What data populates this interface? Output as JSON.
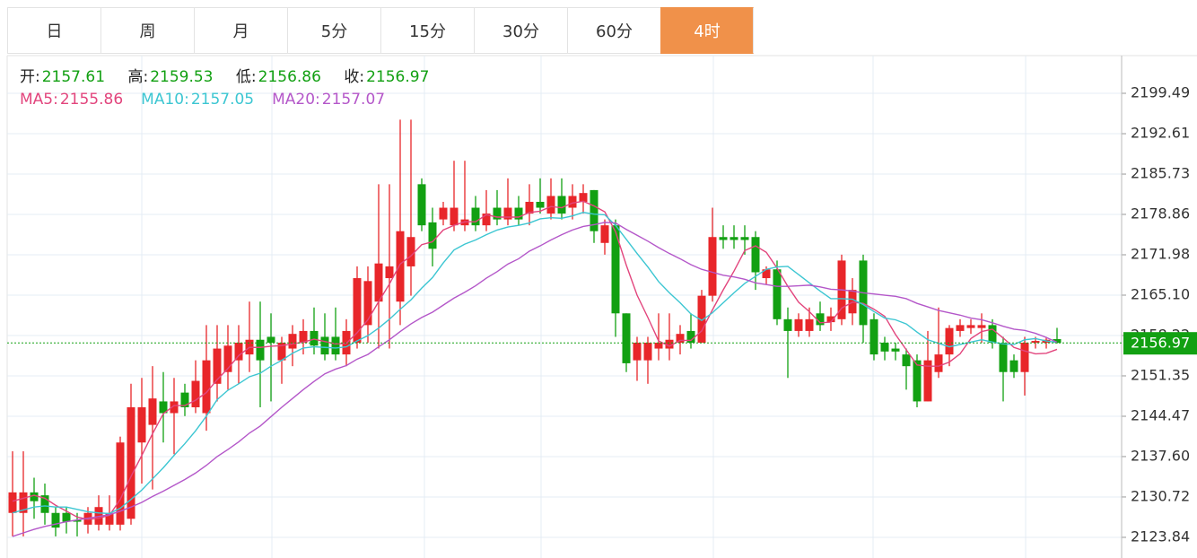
{
  "tabs": [
    "日",
    "周",
    "月",
    "5分",
    "15分",
    "30分",
    "60分",
    "4时"
  ],
  "active_tab": 7,
  "chart_data": {
    "type": "candlestick",
    "open_label": "开:",
    "high_label": "高:",
    "low_label": "低:",
    "close_label": "收:",
    "up_color": "#e8262a",
    "down_color": "#12a012",
    "ylim": [
      2120.32,
      2205.91
    ],
    "yticks": [
      2123.84,
      2130.72,
      {
        "value": 2137.6,
        "label": "2137.60"
      },
      2144.47,
      2151.35,
      2158.22,
      {
        "value": 2165.1,
        "label": "2165.10"
      },
      2171.98,
      2178.86,
      2185.73,
      2192.61,
      2199.49
    ],
    "grid": true,
    "open": [
      2128,
      2128,
      2131.5,
      2131,
      2128,
      2128,
      2126.8,
      2126,
      2126,
      2126,
      2126,
      2127,
      2140,
      2143,
      2147,
      2145,
      2148.5,
      2146,
      2145,
      2150,
      2152,
      2154,
      2155,
      2157.5,
      2158,
      2154,
      2156,
      2157,
      2159,
      2158,
      2158,
      2155,
      2157,
      2160,
      2164,
      2168,
      2164,
      2170,
      2184,
      2177.5,
      2178,
      2177,
      2177,
      2180,
      2177,
      2180,
      2178,
      2180,
      2179,
      2181,
      2179,
      2182,
      2180,
      2181,
      2183,
      2174,
      2177,
      2162,
      2154,
      2154,
      2156,
      2156,
      2157,
      2159,
      2157,
      2165,
      2175,
      2175,
      2175,
      2175,
      2168,
      2169.5,
      2161,
      2159,
      2159,
      2162,
      2160.5,
      2161,
      2162,
      2171,
      2161,
      2157,
      2156,
      2155,
      2154,
      2147,
      2152,
      2155,
      2159,
      2159.5,
      2159.5,
      2160,
      2157,
      2154,
      2152,
      2157,
      2157,
      2157.61
    ],
    "high": [
      2138.5,
      2138.5,
      2134,
      2133,
      2129,
      2129,
      2128,
      2129,
      2131,
      2131,
      2141,
      2150,
      2151,
      2153,
      2152,
      2151,
      2150,
      2154,
      2160,
      2160,
      2160,
      2160,
      2164,
      2164,
      2162,
      2158,
      2160,
      2161,
      2163,
      2162,
      2163,
      2161,
      2170,
      2170,
      2184,
      2184,
      2195,
      2195,
      2185,
      2180,
      2181,
      2188,
      2188,
      2182,
      2183,
      2183,
      2185,
      2182,
      2184,
      2185,
      2185,
      2185,
      2184,
      2184,
      2183,
      2178,
      2178,
      2162,
      2158,
      2158,
      2162,
      2162,
      2160,
      2162,
      2166,
      2180,
      2177,
      2177,
      2177,
      2176,
      2170,
      2171,
      2163,
      2162,
      2163,
      2164,
      2163,
      2172,
      2168,
      2172,
      2162,
      2158,
      2157,
      2156,
      2155,
      2159,
      2163,
      2160,
      2161,
      2161,
      2162,
      2161,
      2158,
      2155,
      2158,
      2158,
      2158,
      2159.53
    ],
    "low": [
      2124,
      2124,
      2127,
      2126,
      2124,
      2124.5,
      2124,
      2124.5,
      2125,
      2125,
      2125,
      2126,
      2133,
      2132,
      2140,
      2138,
      2144.5,
      2145,
      2142,
      2147,
      2149,
      2150,
      2152,
      2146,
      2147,
      2150,
      2153,
      2155,
      2155,
      2154,
      2154,
      2153,
      2156,
      2157,
      2156,
      2156,
      2160,
      2165,
      2176,
      2170,
      2177,
      2176,
      2176,
      2176,
      2176,
      2177,
      2177,
      2177,
      2177,
      2179,
      2178,
      2178,
      2178,
      2179,
      2174,
      2172,
      2158,
      2152,
      2150.5,
      2150,
      2154,
      2154,
      2155,
      2156,
      2157,
      2164,
      2173,
      2173,
      2172,
      2166,
      2167,
      2160,
      2151,
      2158,
      2158,
      2159,
      2159,
      2160,
      2160,
      2157,
      2154,
      2154,
      2154,
      2149,
      2146,
      2147,
      2151,
      2153,
      2158,
      2158.5,
      2157,
      2156,
      2147,
      2151,
      2148,
      2156,
      2156,
      2156.86
    ],
    "close": [
      2131.5,
      2131.5,
      2130,
      2128,
      2125.5,
      2126.5,
      2126.5,
      2128,
      2129,
      2128,
      2140,
      2146,
      2146,
      2147.5,
      2145,
      2147,
      2146,
      2150.5,
      2154,
      2156,
      2156.5,
      2157,
      2157.5,
      2154,
      2157,
      2157,
      2158.5,
      2159,
      2156.5,
      2155,
      2155,
      2159,
      2168,
      2167.5,
      2170.5,
      2170,
      2176,
      2175,
      2177,
      2173,
      2180,
      2180,
      2178,
      2177,
      2179,
      2178,
      2180,
      2178,
      2181,
      2180,
      2182,
      2179,
      2182,
      2182.5,
      2176,
      2177,
      2162,
      2153.5,
      2157,
      2157,
      2157,
      2157.5,
      2158.5,
      2157,
      2165,
      2175,
      2174.5,
      2174.5,
      2174.5,
      2169,
      2169.5,
      2161,
      2159,
      2161,
      2161,
      2160,
      2161.5,
      2171,
      2166,
      2160,
      2155,
      2155.5,
      2155.5,
      2153,
      2147,
      2154,
      2155,
      2159.5,
      2160,
      2160,
      2160,
      2157,
      2152,
      2152,
      2157,
      2157.3,
      2157.5,
      2156.97
    ],
    "legend": [
      {
        "label": "MA5:",
        "series": 0
      },
      {
        "label": "MA10:",
        "series": 1
      },
      {
        "label": "MA20:",
        "series": 2
      }
    ],
    "series": [
      {
        "color": "#e2457d",
        "values": [
          2130,
          2130.5,
          2131,
          2130.5,
          2129.3,
          2128.3,
          2127.3,
          2126.9,
          2127.1,
          2127.6,
          2130.3,
          2134.2,
          2137.8,
          2141.5,
          2144.9,
          2146.3,
          2146.3,
          2147.2,
          2148.5,
          2150.7,
          2152.6,
          2154.8,
          2156.2,
          2156.2,
          2156.4,
          2156.5,
          2156.8,
          2157.1,
          2157.6,
          2157.2,
          2156.8,
          2156.9,
          2158.7,
          2160.9,
          2164,
          2167,
          2170.4,
          2171.8,
          2173.7,
          2174.2,
          2176.2,
          2177,
          2177.6,
          2177.6,
          2178.8,
          2178.4,
          2178.4,
          2178.4,
          2179.2,
          2179.4,
          2180.2,
          2180,
          2180.8,
          2181.1,
          2180.3,
          2179.3,
          2175.9,
          2170.2,
          2165.1,
          2161.3,
          2157.3,
          2156.4,
          2157.4,
          2157.4,
          2159,
          2162.6,
          2166,
          2169.2,
          2172.7,
          2173.5,
          2172.4,
          2169.7,
          2166.6,
          2163.9,
          2162.3,
          2160.4,
          2160.5,
          2162.9,
          2163.9,
          2163.7,
          2162.7,
          2161.5,
          2158.4,
          2155.8,
          2153.2,
          2153,
          2153,
          2153.7,
          2155.1,
          2157.7,
          2158.9,
          2159.3,
          2157.8,
          2156.2,
          2155.6,
          2155.1,
          2155.2,
          2155.86
        ]
      },
      {
        "color": "#3cc6d2",
        "values": [
          2128,
          2128.5,
          2129,
          2129.2,
          2129,
          2129,
          2128.6,
          2128.2,
          2128,
          2127.9,
          2128.8,
          2130.3,
          2131.9,
          2133.8,
          2135.7,
          2137.8,
          2139.8,
          2142,
          2144.5,
          2147.3,
          2148.9,
          2150,
          2151.2,
          2151.8,
          2153,
          2154,
          2155.2,
          2156.1,
          2156.3,
          2156.2,
          2156.1,
          2156.3,
          2157.3,
          2158.2,
          2159.5,
          2161,
          2162.7,
          2164.3,
          2166.3,
          2168.1,
          2170.6,
          2172.8,
          2173.8,
          2174.5,
          2175.4,
          2176.2,
          2176.7,
          2177,
          2177.4,
          2178.1,
          2178.3,
          2178.2,
          2178.6,
          2179.2,
          2178.9,
          2178.8,
          2177,
          2174.6,
          2172.2,
          2169.9,
          2167.4,
          2165.5,
          2163.8,
          2161.9,
          2160.8,
          2162.1,
          2163.8,
          2165.5,
          2167.1,
          2168.3,
          2169.5,
          2169.9,
          2170,
          2168.6,
          2167.2,
          2165.8,
          2164.5,
          2164.5,
          2164.4,
          2163.5,
          2162.3,
          2161.2,
          2160.9,
          2160.2,
          2158.8,
          2157.5,
          2156.9,
          2156.3,
          2156.7,
          2157.1,
          2157.5,
          2157.1,
          2156.8,
          2156.7,
          2157.5,
          2157.7,
          2157.3,
          2157.05
        ]
      },
      {
        "color": "#b457c9",
        "values": [
          2124,
          2124.6,
          2125.2,
          2125.7,
          2126.1,
          2126.5,
          2126.8,
          2127.1,
          2127.4,
          2127.7,
          2128.3,
          2129,
          2129.8,
          2130.8,
          2131.7,
          2132.7,
          2133.7,
          2134.8,
          2136.1,
          2137.6,
          2138.8,
          2140.1,
          2141.6,
          2142.8,
          2144.4,
          2146,
          2147.5,
          2149,
          2150.4,
          2151.7,
          2152.5,
          2153.1,
          2154.2,
          2155,
          2156.3,
          2157.5,
          2158.9,
          2160.2,
          2161.3,
          2162.2,
          2163.4,
          2164.6,
          2165.6,
          2166.7,
          2168,
          2169.1,
          2170.4,
          2171.3,
          2172.6,
          2173.5,
          2174.5,
          2175.4,
          2176.2,
          2176.8,
          2177.1,
          2177.5,
          2177.4,
          2176.3,
          2175.3,
          2174.3,
          2173.2,
          2172.2,
          2171.3,
          2170.3,
          2169.5,
          2169,
          2168.5,
          2168.2,
          2167.8,
          2167.2,
          2166.9,
          2166.6,
          2166.6,
          2166.7,
          2166.8,
          2166.5,
          2166.1,
          2166,
          2165.8,
          2165.5,
          2165.3,
          2165.1,
          2164.9,
          2164.5,
          2163.7,
          2163.1,
          2162.5,
          2162.1,
          2161.7,
          2161.2,
          2160.9,
          2160.4,
          2159.8,
          2159.3,
          2159.1,
          2158.6,
          2157.9,
          2157.07
        ]
      }
    ]
  }
}
